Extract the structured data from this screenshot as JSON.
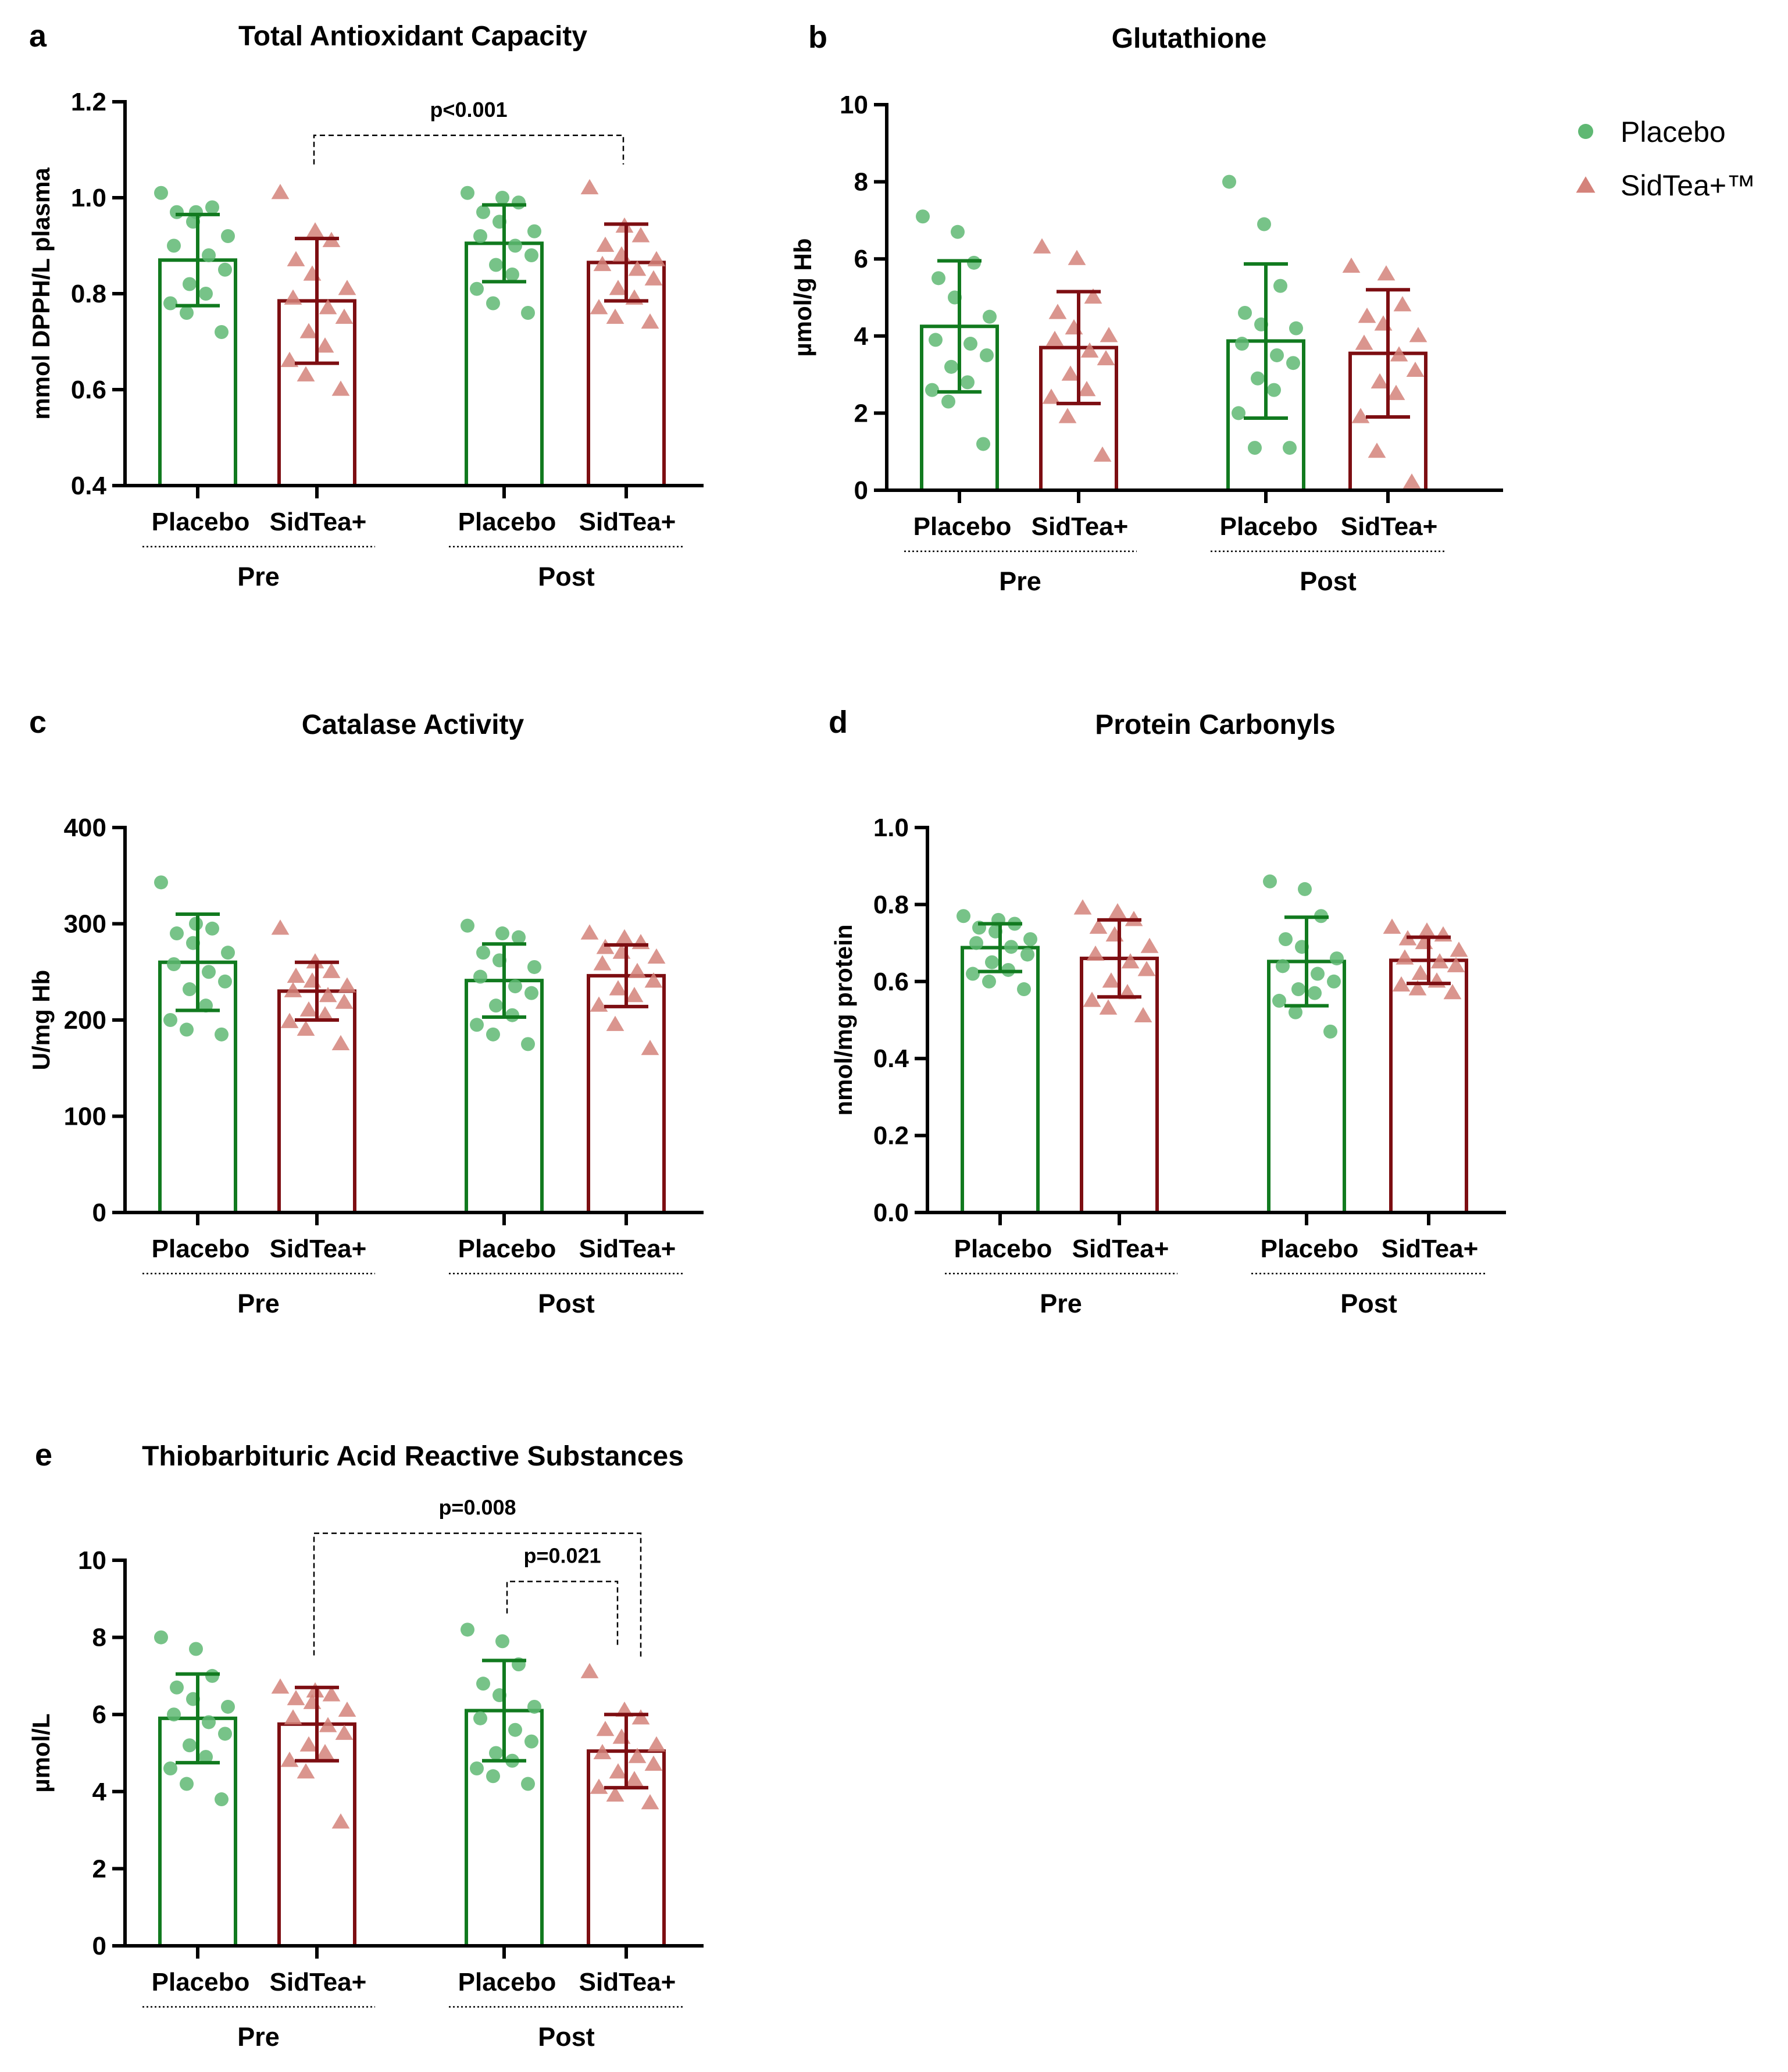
{
  "chart_data": [
    {
      "id": "a",
      "letter": "a",
      "type": "bar",
      "title": "Total Antioxidant Capacity",
      "ylabel": "mmol DPPH/L plasma",
      "ylim": [
        0.4,
        1.2
      ],
      "yticks": [
        "0.4",
        "0.6",
        "0.8",
        "1.0",
        "1.2"
      ],
      "groups": [
        "Pre",
        "Post"
      ],
      "categories": [
        "Placebo",
        "SidTea+",
        "Placebo",
        "SidTea+"
      ],
      "series": [
        {
          "name": "Placebo",
          "means": [
            0.87,
            0.905
          ],
          "sd": [
            0.095,
            0.08
          ],
          "points": [
            [
              1.01,
              0.97,
              0.98,
              0.97,
              0.95,
              0.92,
              0.9,
              0.88,
              0.85,
              0.82,
              0.8,
              0.78,
              0.76,
              0.72
            ],
            [
              1.01,
              1.0,
              0.99,
              0.97,
              0.95,
              0.93,
              0.92,
              0.9,
              0.88,
              0.86,
              0.84,
              0.81,
              0.78,
              0.76
            ]
          ]
        },
        {
          "name": "SidTea+",
          "means": [
            0.785,
            0.865
          ],
          "sd": [
            0.13,
            0.08
          ],
          "points": [
            [
              1.01,
              0.93,
              0.91,
              0.87,
              0.84,
              0.81,
              0.79,
              0.77,
              0.75,
              0.72,
              0.69,
              0.66,
              0.63,
              0.6
            ],
            [
              1.02,
              0.94,
              0.92,
              0.9,
              0.88,
              0.87,
              0.86,
              0.85,
              0.83,
              0.81,
              0.79,
              0.77,
              0.75,
              0.74
            ]
          ]
        }
      ],
      "annotations": [
        {
          "text": "p<0.001",
          "from": 1,
          "to": 3,
          "level": 1.13
        }
      ]
    },
    {
      "id": "b",
      "letter": "b",
      "type": "bar",
      "title": "Glutathione",
      "ylabel": "µmol/g Hb",
      "ylim": [
        0,
        10
      ],
      "yticks": [
        "0",
        "2",
        "4",
        "6",
        "8",
        "10"
      ],
      "groups": [
        "Pre",
        "Post"
      ],
      "categories": [
        "Placebo",
        "SidTea+",
        "Placebo",
        "SidTea+"
      ],
      "series": [
        {
          "name": "Placebo",
          "means": [
            4.25,
            3.87
          ],
          "sd": [
            1.7,
            2.0
          ],
          "points": [
            [
              7.1,
              6.7,
              5.9,
              5.5,
              5.0,
              4.5,
              3.9,
              3.8,
              3.5,
              3.2,
              2.8,
              2.6,
              2.3,
              1.2
            ],
            [
              8.0,
              6.9,
              5.3,
              4.6,
              4.3,
              4.2,
              3.8,
              3.5,
              3.3,
              2.9,
              2.6,
              2.0,
              1.1,
              1.1
            ]
          ]
        },
        {
          "name": "SidTea+",
          "means": [
            3.7,
            3.55
          ],
          "sd": [
            1.45,
            1.65
          ],
          "points": [
            [
              6.3,
              6.0,
              5.0,
              4.6,
              4.2,
              4.0,
              3.9,
              3.6,
              3.4,
              3.0,
              2.6,
              2.4,
              1.9,
              0.9
            ],
            [
              5.8,
              5.6,
              4.8,
              4.5,
              4.3,
              4.0,
              3.8,
              3.5,
              3.1,
              2.8,
              2.5,
              1.9,
              1.0,
              0.2
            ]
          ]
        }
      ],
      "annotations": []
    },
    {
      "id": "c",
      "letter": "c",
      "type": "bar",
      "title": "Catalase Activity",
      "ylabel": "U/mg Hb",
      "ylim": [
        0,
        400
      ],
      "yticks": [
        "0",
        "100",
        "200",
        "300",
        "400"
      ],
      "groups": [
        "Pre",
        "Post"
      ],
      "categories": [
        "Placebo",
        "SidTea+",
        "Placebo",
        "SidTea+"
      ],
      "series": [
        {
          "name": "Placebo",
          "means": [
            260,
            241
          ],
          "sd": [
            50,
            38
          ],
          "points": [
            [
              343,
              300,
              295,
              290,
              280,
              270,
              258,
              250,
              240,
              232,
              215,
              200,
              190,
              185
            ],
            [
              298,
              290,
              286,
              270,
              262,
              255,
              245,
              235,
              228,
              215,
              205,
              195,
              185,
              175
            ]
          ]
        },
        {
          "name": "SidTea+",
          "means": [
            230,
            246
          ],
          "sd": [
            30,
            32
          ],
          "points": [
            [
              295,
              260,
              250,
              245,
              240,
              235,
              230,
              225,
              218,
              210,
              205,
              198,
              190,
              175
            ],
            [
              290,
              285,
              280,
              275,
              270,
              265,
              258,
              250,
              240,
              232,
              225,
              215,
              195,
              170
            ]
          ]
        }
      ],
      "annotations": []
    },
    {
      "id": "d",
      "letter": "d",
      "type": "bar",
      "title": "Protein Carbonyls",
      "ylabel": "nmol/mg protein",
      "ylim": [
        0,
        1.0
      ],
      "yticks": [
        "0.0",
        "0.2",
        "0.4",
        "0.6",
        "0.8",
        "1.0"
      ],
      "groups": [
        "Pre",
        "Post"
      ],
      "categories": [
        "Placebo",
        "SidTea+",
        "Placebo",
        "SidTea+"
      ],
      "series": [
        {
          "name": "Placebo",
          "means": [
            0.688,
            0.652
          ],
          "sd": [
            0.062,
            0.115
          ],
          "points": [
            [
              0.77,
              0.76,
              0.75,
              0.74,
              0.73,
              0.71,
              0.7,
              0.69,
              0.67,
              0.65,
              0.63,
              0.62,
              0.6,
              0.58
            ],
            [
              0.86,
              0.84,
              0.77,
              0.71,
              0.69,
              0.66,
              0.64,
              0.62,
              0.6,
              0.58,
              0.57,
              0.55,
              0.52,
              0.47
            ]
          ]
        },
        {
          "name": "SidTea+",
          "means": [
            0.66,
            0.655
          ],
          "sd": [
            0.1,
            0.06
          ],
          "points": [
            [
              0.79,
              0.78,
              0.76,
              0.74,
              0.72,
              0.69,
              0.67,
              0.65,
              0.63,
              0.6,
              0.57,
              0.55,
              0.53,
              0.51
            ],
            [
              0.74,
              0.73,
              0.72,
              0.71,
              0.7,
              0.68,
              0.66,
              0.65,
              0.64,
              0.62,
              0.6,
              0.59,
              0.58,
              0.57
            ]
          ]
        }
      ],
      "annotations": []
    },
    {
      "id": "e",
      "letter": "e",
      "type": "bar",
      "title": "Thiobarbituric Acid Reactive Substances",
      "ylabel": "µmol/L",
      "ylim": [
        0,
        10
      ],
      "yticks": [
        "0",
        "2",
        "4",
        "6",
        "8",
        "10"
      ],
      "groups": [
        "Pre",
        "Post"
      ],
      "categories": [
        "Placebo",
        "SidTea+",
        "Placebo",
        "SidTea+"
      ],
      "series": [
        {
          "name": "Placebo",
          "means": [
            5.9,
            6.1
          ],
          "sd": [
            1.15,
            1.3
          ],
          "points": [
            [
              8.0,
              7.7,
              7.0,
              6.7,
              6.4,
              6.2,
              6.0,
              5.8,
              5.5,
              5.2,
              4.9,
              4.6,
              4.2,
              3.8
            ],
            [
              8.2,
              7.9,
              7.3,
              6.8,
              6.5,
              6.2,
              5.9,
              5.6,
              5.3,
              5.0,
              4.8,
              4.6,
              4.4,
              4.2
            ]
          ]
        },
        {
          "name": "SidTea+",
          "means": [
            5.75,
            5.05
          ],
          "sd": [
            0.95,
            0.95
          ],
          "points": [
            [
              6.7,
              6.6,
              6.5,
              6.4,
              6.3,
              6.1,
              5.9,
              5.7,
              5.5,
              5.2,
              5.0,
              4.8,
              4.5,
              3.2
            ],
            [
              7.1,
              6.1,
              5.9,
              5.6,
              5.4,
              5.2,
              5.0,
              4.9,
              4.7,
              4.5,
              4.3,
              4.1,
              3.9,
              3.7
            ]
          ]
        }
      ],
      "annotations": [
        {
          "text": "p=0.008",
          "from": 1,
          "to": 3,
          "level": 10.7
        },
        {
          "text": "p=0.021",
          "from": 2,
          "to": 3,
          "level": 9.45
        }
      ]
    }
  ],
  "legend": {
    "items": [
      {
        "label": "Placebo",
        "marker": "circle",
        "color": "#5fb873"
      },
      {
        "label": "SidTea+™",
        "marker": "triangle",
        "color": "#d4827a"
      }
    ]
  },
  "colors": {
    "placebo_bar": "#117a1f",
    "sidtea_bar": "#7d0e12",
    "placebo_point": "#5fb873",
    "sidtea_point": "#d4827a"
  }
}
